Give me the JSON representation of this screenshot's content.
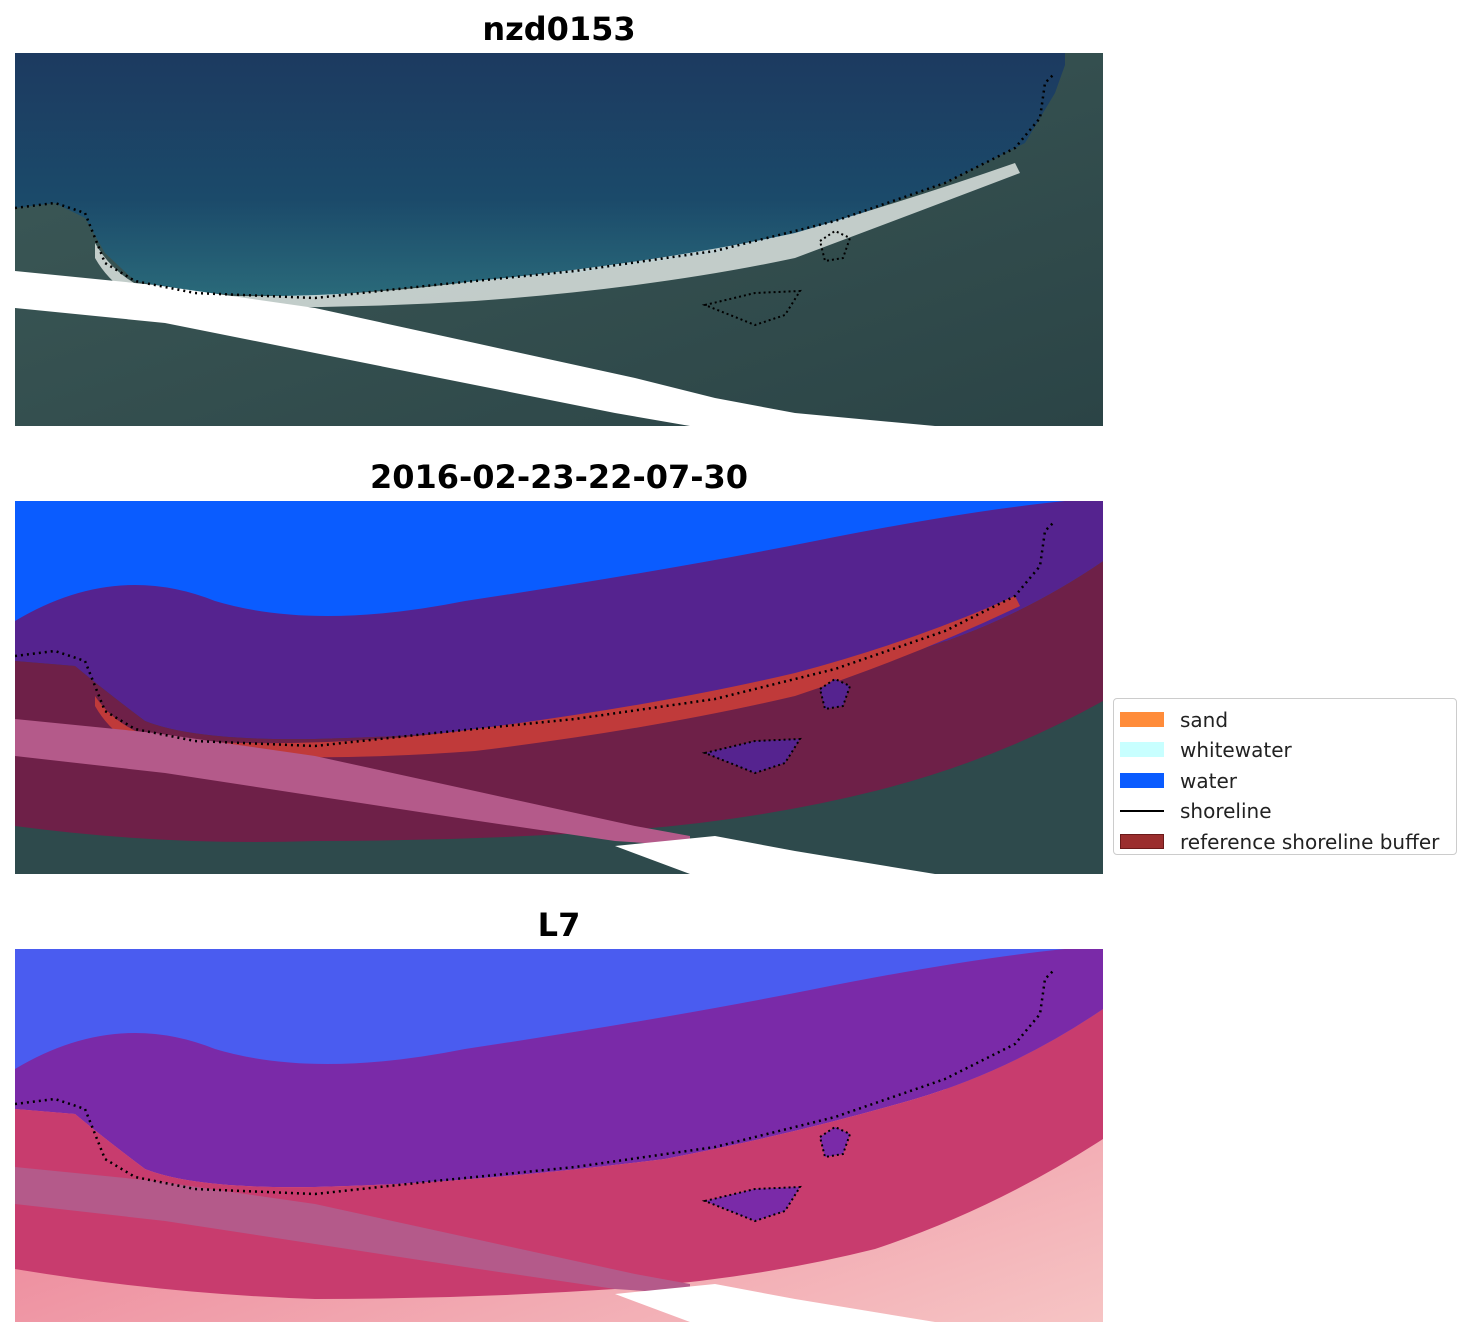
{
  "panels": [
    {
      "title": "nzd0153",
      "kind": "rgb"
    },
    {
      "title": "2016-02-23-22-07-30",
      "kind": "classified"
    },
    {
      "title": "L7",
      "kind": "index"
    }
  ],
  "legend": {
    "items": [
      {
        "label": "sand",
        "type": "patch",
        "color": "#ff8c3a"
      },
      {
        "label": "whitewater",
        "type": "patch",
        "color": "#c8ffff"
      },
      {
        "label": "water",
        "type": "patch",
        "color": "#0a5cff"
      },
      {
        "label": "shoreline",
        "type": "line",
        "color": "#000000"
      },
      {
        "label": "reference shoreline buffer",
        "type": "patch",
        "color": "#9b2e2e"
      }
    ]
  },
  "colors": {
    "deep_water": "#1a3658",
    "land": "#2e4a4c",
    "surf": "#e8eeea",
    "classified_water": "#0a5cff",
    "buffer_purple": "#55238f",
    "buffer_maroon": "#6e2048",
    "buffer_pink": "#b45a8a",
    "sand_red": "#c03a3a",
    "index_blue": "#4a5cf0",
    "index_purple": "#7a2aa8",
    "index_red": "#c83c6e",
    "index_light": "#f2a6a6"
  }
}
